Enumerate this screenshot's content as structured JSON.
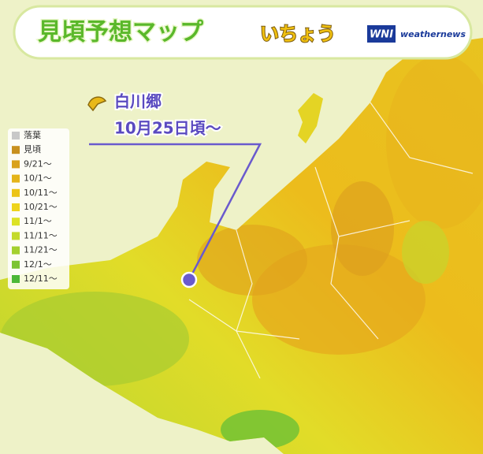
{
  "header": {
    "title": "見頃予想マップ",
    "subtitle": "いちょう",
    "logo": "WNI",
    "brand": "weathernews"
  },
  "callout": {
    "place": "白川郷",
    "date": "10月25日頃〜"
  },
  "legend": [
    {
      "label": "落葉",
      "color": "#c8c8c8"
    },
    {
      "label": "見頃",
      "color": "#c8901e"
    },
    {
      "label": "9/21〜",
      "color": "#d9a21c"
    },
    {
      "label": "10/1〜",
      "color": "#e4b418"
    },
    {
      "label": "10/11〜",
      "color": "#ecc417"
    },
    {
      "label": "10/21〜",
      "color": "#eed41c"
    },
    {
      "label": "11/1〜",
      "color": "#dce224"
    },
    {
      "label": "11/11〜",
      "color": "#c4da2c"
    },
    {
      "label": "11/21〜",
      "color": "#a4d030"
    },
    {
      "label": "12/1〜",
      "color": "#7cc432"
    },
    {
      "label": "12/11〜",
      "color": "#4cb838"
    }
  ]
}
